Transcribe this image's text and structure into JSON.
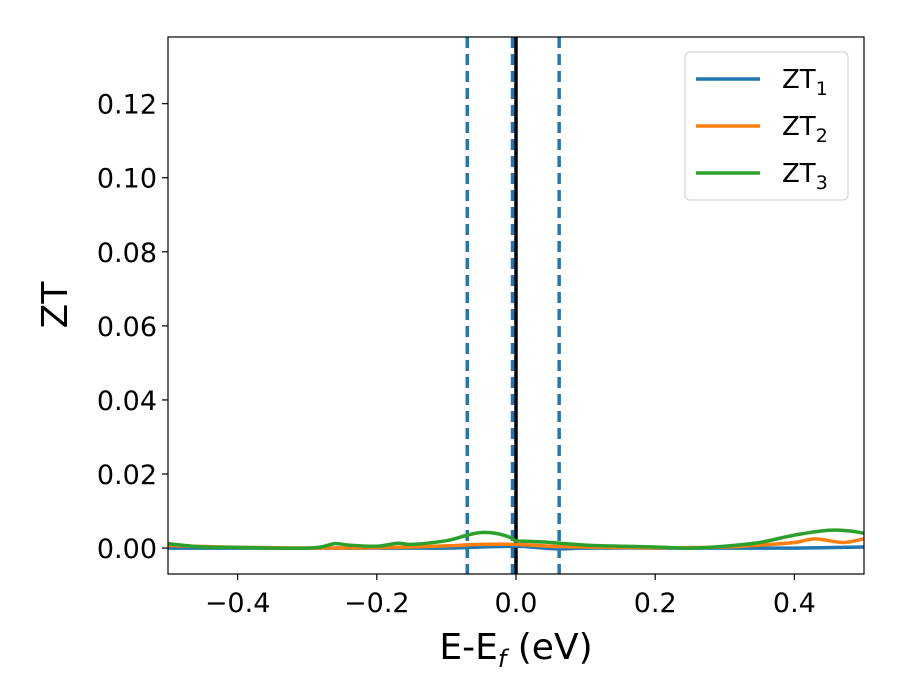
{
  "chart_data": {
    "type": "line",
    "title": "",
    "xlabel": {
      "main": "E-E",
      "sub": "f",
      "suffix": " (eV)"
    },
    "ylabel": "ZT",
    "xlim": [
      -0.5,
      0.5
    ],
    "ylim": [
      -0.007,
      0.138
    ],
    "xticks": [
      -0.4,
      -0.2,
      0.0,
      0.2,
      0.4
    ],
    "xtick_labels": [
      "−0.4",
      "−0.2",
      "0.0",
      "0.2",
      "0.4"
    ],
    "yticks": [
      0.0,
      0.02,
      0.04,
      0.06,
      0.08,
      0.1,
      0.12
    ],
    "ytick_labels": [
      "0.00",
      "0.02",
      "0.04",
      "0.06",
      "0.08",
      "0.10",
      "0.12"
    ],
    "grid": false,
    "legend_position": "top-right",
    "vertical_lines": [
      {
        "x": -0.07,
        "style": "dashed",
        "color": "#1f77b4"
      },
      {
        "x": -0.005,
        "style": "dashed",
        "color": "#1f77b4"
      },
      {
        "x": 0.0,
        "style": "solid",
        "color": "#000000"
      },
      {
        "x": 0.062,
        "style": "dashed",
        "color": "#1f77b4"
      }
    ],
    "series": [
      {
        "name": "ZT",
        "sub": "1",
        "color": "#1f77b4",
        "x": [
          -0.5,
          -0.4,
          -0.3,
          -0.2,
          -0.1,
          -0.05,
          0.0,
          0.02,
          0.06,
          0.1,
          0.2,
          0.3,
          0.4,
          0.5
        ],
        "y": [
          0.0,
          0.0,
          0.0,
          0.0,
          0.0,
          0.0003,
          0.0005,
          0.0003,
          -0.0002,
          0.0,
          0.0,
          0.0,
          0.0,
          0.0003
        ]
      },
      {
        "name": "ZT",
        "sub": "2",
        "color": "#ff7f0e",
        "x": [
          -0.5,
          -0.4,
          -0.3,
          -0.2,
          -0.15,
          -0.1,
          -0.05,
          0.0,
          0.05,
          0.1,
          0.2,
          0.3,
          0.35,
          0.4,
          0.43,
          0.47,
          0.5
        ],
        "y": [
          0.0007,
          0.0002,
          0.0,
          0.0001,
          0.0003,
          0.0006,
          0.001,
          0.001,
          0.0005,
          0.0003,
          0.0001,
          0.0003,
          0.0008,
          0.0015,
          0.0025,
          0.0015,
          0.0025
        ]
      },
      {
        "name": "ZT",
        "sub": "3",
        "color": "#2ca02c",
        "x": [
          -0.5,
          -0.45,
          -0.4,
          -0.35,
          -0.3,
          -0.28,
          -0.26,
          -0.24,
          -0.2,
          -0.17,
          -0.15,
          -0.1,
          -0.07,
          -0.05,
          -0.03,
          -0.01,
          0.0,
          0.02,
          0.05,
          0.1,
          0.15,
          0.2,
          0.25,
          0.3,
          0.35,
          0.4,
          0.45,
          0.48,
          0.5
        ],
        "y": [
          0.0012,
          0.0003,
          0.0002,
          0.0,
          0.0,
          0.0003,
          0.0012,
          0.0008,
          0.0005,
          0.0013,
          0.001,
          0.002,
          0.0035,
          0.0042,
          0.004,
          0.003,
          0.002,
          0.0018,
          0.0015,
          0.0008,
          0.0005,
          0.0003,
          0.0,
          0.0005,
          0.0015,
          0.0035,
          0.0048,
          0.0046,
          0.004
        ]
      }
    ]
  }
}
